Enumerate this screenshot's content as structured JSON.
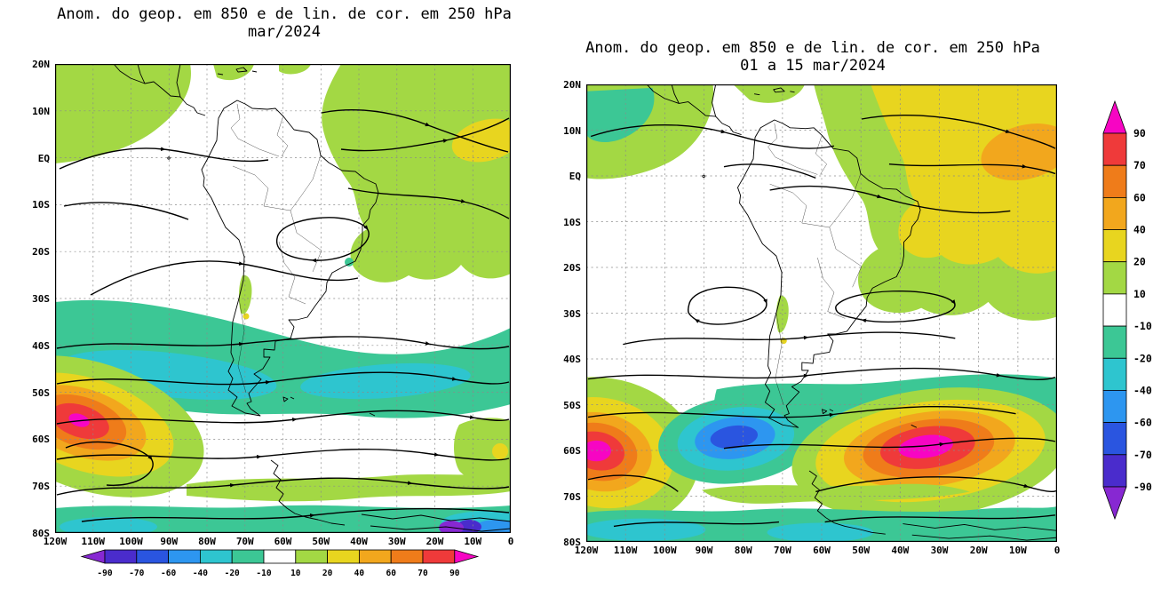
{
  "figure": {
    "background": "#ffffff",
    "description": "Two filled-contour maps of 850 hPa geopotential anomaly with 250 hPa streamlines over South America, with shared anomaly colorbar"
  },
  "chart_data": [
    {
      "type": "heatmap",
      "title": "Anom. do geop. em 850 e de lin. de cor. em 250 hPa",
      "subtitle": "mar/2024",
      "fill_field": "850 hPa geopotential anomaly",
      "overlay": "250 hPa streamlines (black lines with arrowheads)",
      "x_ticks": [
        "120W",
        "110W",
        "100W",
        "90W",
        "80W",
        "70W",
        "60W",
        "50W",
        "40W",
        "30W",
        "20W",
        "10W",
        "0"
      ],
      "y_ticks": [
        "20N",
        "10N",
        "EQ",
        "10S",
        "20S",
        "30S",
        "40S",
        "50S",
        "60S",
        "70S",
        "80S"
      ],
      "lon_range": [
        -120,
        0
      ],
      "lat_range": [
        -80,
        20
      ],
      "grid": "dashed 10-degree graticule",
      "features": [
        {
          "region": "SE Pacific near 55S 110W",
          "sign": "positive",
          "range": "40 to 90"
        },
        {
          "region": "mid-latitude band 30S-55S",
          "sign": "negative",
          "range": "-10 to -40"
        },
        {
          "region": "tropical Atlantic / NE Brazil",
          "sign": "positive",
          "range": "10 to 40"
        },
        {
          "region": "NE Pacific corner / Central America",
          "sign": "positive",
          "range": "10 to 20"
        },
        {
          "region": "high-latitude strip 75S-80S",
          "sign": "negative",
          "range": "-10 to below -90"
        }
      ]
    },
    {
      "type": "heatmap",
      "title": "Anom. do geop. em 850 e de lin. de cor. em 250 hPa",
      "subtitle": "01 a 15 mar/2024",
      "fill_field": "850 hPa geopotential anomaly",
      "overlay": "250 hPa streamlines (black lines with arrowheads)",
      "x_ticks": [
        "120W",
        "110W",
        "100W",
        "90W",
        "80W",
        "70W",
        "60W",
        "50W",
        "40W",
        "30W",
        "20W",
        "10W",
        "0"
      ],
      "y_ticks": [
        "20N",
        "10N",
        "EQ",
        "10S",
        "20S",
        "30S",
        "40S",
        "50S",
        "60S",
        "70S",
        "80S"
      ],
      "lon_range": [
        -120,
        0
      ],
      "lat_range": [
        -80,
        20
      ],
      "grid": "dashed 10-degree graticule",
      "features": [
        {
          "region": "SE Pacific near 50S 118W",
          "sign": "positive",
          "range": "above 90"
        },
        {
          "region": "near 55S 80W",
          "sign": "negative",
          "range": "-40 to -60"
        },
        {
          "region": "South Atlantic near 60S 30W",
          "sign": "positive",
          "range": "above 90"
        },
        {
          "region": "tropical Atlantic / NE Brazil",
          "sign": "positive",
          "range": "20 to 60"
        },
        {
          "region": "mid-latitude band 38S-48S",
          "sign": "negative",
          "range": "-10 to -60"
        },
        {
          "region": "high-latitude strip 75S-80S",
          "sign": "negative",
          "range": "-10 to -40"
        }
      ]
    }
  ],
  "colorbar": {
    "levels": [
      -90,
      -70,
      -60,
      -40,
      -20,
      -10,
      10,
      20,
      40,
      60,
      70,
      90
    ],
    "colors": [
      "#8728d2",
      "#4a2ccc",
      "#2a55e0",
      "#2d96f0",
      "#2ec5cf",
      "#3cc795",
      "#ffffff",
      "#a3d844",
      "#e8d51f",
      "#f2a71d",
      "#ef7c1a",
      "#ef3a3a",
      "#f705c3"
    ],
    "labels_horizontal": [
      "-90",
      "-70",
      "-60",
      "-40",
      "-20",
      "-10",
      "10",
      "20",
      "40",
      "60",
      "70",
      "90"
    ],
    "labels_vertical": [
      "90",
      "70",
      "60",
      "40",
      "20",
      "10",
      "-10",
      "-20",
      "-40",
      "-60",
      "-70",
      "-90"
    ]
  }
}
